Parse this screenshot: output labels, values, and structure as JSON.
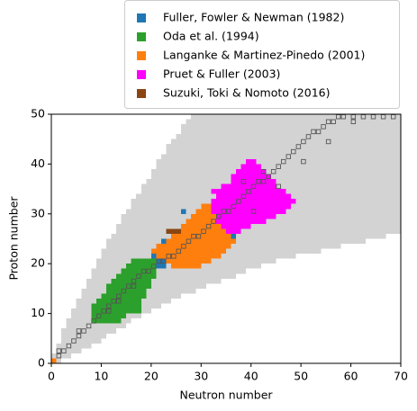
{
  "chart_data": {
    "type": "scatter",
    "xlabel": "Neutron number",
    "ylabel": "Proton number",
    "xlim": [
      0,
      70
    ],
    "ylim": [
      0,
      50
    ],
    "xticks": [
      0,
      10,
      20,
      30,
      40,
      50,
      60,
      70
    ],
    "yticks": [
      0,
      10,
      20,
      30,
      40,
      50
    ],
    "legend": "upper right",
    "series": [
      {
        "color": "#d3d3d3",
        "y": [
          0,
          1,
          2,
          3,
          4,
          5,
          6,
          7,
          8,
          9,
          10,
          11,
          12,
          13,
          14,
          15,
          16,
          17,
          18,
          19,
          20,
          21,
          22,
          23,
          24,
          25,
          26,
          27,
          28,
          29,
          30,
          31,
          32,
          33,
          34,
          35,
          36,
          37,
          38,
          39,
          40,
          41,
          42,
          43,
          44,
          45,
          46,
          47,
          48,
          49
        ],
        "x_start": [
          0,
          0,
          1,
          1,
          2,
          2,
          2,
          3,
          3,
          4,
          4,
          5,
          5,
          6,
          6,
          7,
          7,
          8,
          8,
          9,
          9,
          10,
          10,
          11,
          11,
          12,
          13,
          13,
          14,
          14,
          15,
          16,
          16,
          17,
          18,
          18,
          19,
          20,
          20,
          21,
          21,
          22,
          23,
          23,
          24,
          25,
          26,
          26,
          27,
          28
        ],
        "x_end": [
          1,
          3,
          5,
          7,
          9,
          10,
          12,
          14,
          15,
          17,
          19,
          21,
          23,
          25,
          28,
          30,
          33,
          36,
          38,
          41,
          44,
          48,
          53,
          57,
          62,
          66,
          70,
          70,
          70,
          70,
          70,
          70,
          70,
          70,
          70,
          70,
          70,
          70,
          70,
          70,
          70,
          70,
          70,
          70,
          70,
          70,
          70,
          70,
          70,
          70
        ]
      },
      {
        "name": "Fuller, Fowler & Newman (1982)",
        "color": "#1f77b4",
        "y": [
          19,
          20,
          21,
          22,
          23,
          24,
          25,
          24,
          30
        ],
        "x_start": [
          21,
          19,
          20,
          20,
          21,
          22,
          34,
          35,
          26
        ],
        "x_end": [
          22,
          24,
          26,
          27,
          28,
          28,
          36,
          36,
          26
        ]
      },
      {
        "name": "Oda et al. (1994)",
        "color": "#2ca02c",
        "y": [
          8,
          9,
          10,
          11,
          12,
          13,
          14,
          15,
          16,
          17,
          18,
          19,
          20
        ],
        "x_start": [
          8,
          8,
          8,
          8,
          9,
          10,
          11,
          11,
          12,
          13,
          14,
          15,
          16
        ],
        "x_end": [
          13,
          14,
          17,
          17,
          17,
          18,
          18,
          19,
          19,
          20,
          20,
          20,
          20
        ]
      },
      {
        "name": "Langanke & Martinez-Pinedo (2001)",
        "color": "#ff7f0e",
        "y": [
          0,
          19,
          20,
          21,
          22,
          23,
          24,
          25,
          26,
          27,
          28,
          29,
          30,
          31,
          32
        ],
        "x_start": [
          0,
          24,
          23,
          21,
          20,
          21,
          23,
          24,
          25,
          26,
          27,
          28,
          29,
          30,
          32
        ],
        "x_end": [
          0,
          29,
          31,
          33,
          34,
          35,
          36,
          35,
          34,
          33,
          34,
          34,
          34,
          34,
          33
        ]
      },
      {
        "name": "Pruet & Fuller (2003)",
        "color": "#ff00ff",
        "y": [
          26,
          27,
          28,
          29,
          30,
          31,
          32,
          33,
          34,
          35,
          36,
          37,
          38,
          39,
          40
        ],
        "x_start": [
          35,
          34,
          33,
          33,
          32,
          32,
          32,
          33,
          32,
          34,
          36,
          36,
          37,
          38,
          39
        ],
        "x_end": [
          37,
          39,
          42,
          44,
          46,
          47,
          48,
          47,
          46,
          44,
          44,
          43,
          42,
          41,
          40
        ]
      },
      {
        "name": "Suzuki, Toki & Nomoto (2016)",
        "color": "#8b4513",
        "y": [
          26
        ],
        "x_start": [
          23
        ],
        "x_end": [
          25
        ]
      },
      {
        "color": "#555555",
        "marker": "open-square",
        "x": [
          1,
          1,
          2,
          3,
          4,
          5,
          5,
          6,
          7,
          8,
          9,
          10,
          11,
          11,
          12,
          13,
          13,
          14,
          15,
          16,
          16,
          17,
          18,
          19,
          20,
          21,
          22,
          23,
          24,
          25,
          26,
          27,
          28,
          29,
          30,
          31,
          32,
          33,
          34,
          35,
          36,
          37,
          38,
          39,
          40,
          41,
          42,
          43,
          44,
          45,
          46,
          47,
          48,
          49,
          50,
          51,
          52,
          53,
          54,
          55,
          56,
          57,
          58,
          60,
          62,
          64,
          66,
          68,
          40,
          45,
          50,
          55,
          60,
          38,
          42
        ],
        "y": [
          1,
          2,
          2,
          3,
          4,
          5,
          6,
          6,
          7,
          8,
          9,
          10,
          10,
          11,
          12,
          13,
          12,
          14,
          15,
          16,
          15,
          17,
          18,
          18,
          19,
          20,
          20,
          21,
          21,
          22,
          23,
          24,
          25,
          25,
          26,
          27,
          28,
          29,
          30,
          30,
          31,
          32,
          33,
          34,
          35,
          36,
          36,
          37,
          38,
          39,
          40,
          41,
          42,
          43,
          44,
          45,
          46,
          46,
          47,
          48,
          48,
          49,
          49,
          49,
          49,
          49,
          49,
          49,
          30,
          35,
          40,
          44,
          48,
          36,
          38
        ]
      }
    ]
  }
}
